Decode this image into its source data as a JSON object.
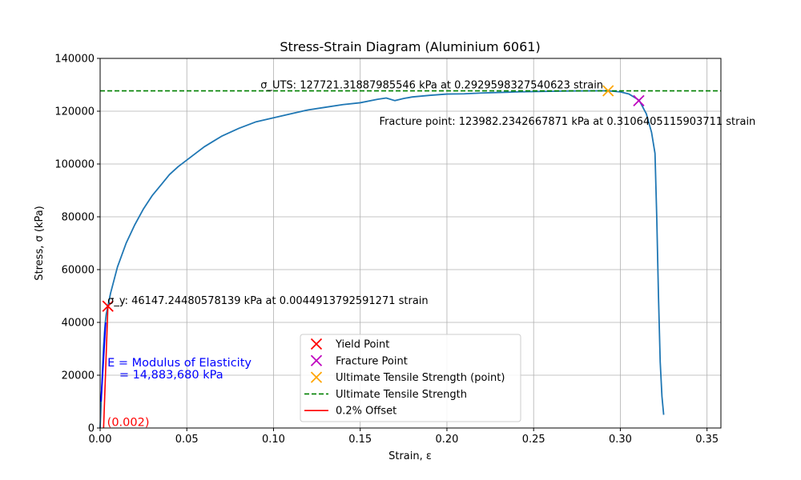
{
  "chart_data": {
    "type": "line",
    "title": "Stress-Strain Diagram (Aluminium 6061)",
    "xlabel": "Strain, ε",
    "ylabel": "Stress, σ (kPa)",
    "xlim": [
      0,
      0.358
    ],
    "ylim": [
      0,
      140000
    ],
    "x_ticks": [
      0,
      0.05,
      0.1,
      0.15,
      0.2,
      0.25,
      0.3,
      0.35
    ],
    "x_tick_labels": [
      "0.00",
      "0.05",
      "0.10",
      "0.15",
      "0.20",
      "0.25",
      "0.30",
      "0.35"
    ],
    "y_ticks": [
      0,
      20000,
      40000,
      60000,
      80000,
      100000,
      120000,
      140000
    ],
    "y_tick_labels": [
      "0",
      "20000",
      "40000",
      "60000",
      "80000",
      "100000",
      "120000",
      "140000"
    ],
    "grid": true,
    "legend_position": "bottom-center",
    "curve": {
      "color": "#1f77b4",
      "x": [
        0,
        0.0005,
        0.001,
        0.0015,
        0.002,
        0.0025,
        0.003,
        0.0035,
        0.0045,
        0.006,
        0.008,
        0.01,
        0.015,
        0.02,
        0.025,
        0.03,
        0.035,
        0.04,
        0.045,
        0.05,
        0.055,
        0.06,
        0.065,
        0.07,
        0.08,
        0.09,
        0.1,
        0.11,
        0.12,
        0.13,
        0.14,
        0.15,
        0.16,
        0.165,
        0.17,
        0.175,
        0.18,
        0.19,
        0.2,
        0.21,
        0.22,
        0.23,
        0.24,
        0.25,
        0.26,
        0.27,
        0.28,
        0.29,
        0.293,
        0.3,
        0.305,
        0.31,
        0.311,
        0.315,
        0.318,
        0.32,
        0.321,
        0.322,
        0.323,
        0.324,
        0.325
      ],
      "y": [
        0,
        8000,
        16000,
        24000,
        31000,
        36000,
        40000,
        43000,
        46147,
        51000,
        56000,
        61000,
        70000,
        77000,
        83000,
        88000,
        92000,
        96000,
        99000,
        101500,
        104000,
        106500,
        108500,
        110500,
        113500,
        116000,
        117500,
        119000,
        120500,
        121500,
        122500,
        123200,
        124500,
        125000,
        124000,
        124800,
        125400,
        126000,
        126500,
        126600,
        126900,
        127100,
        127300,
        127450,
        127550,
        127650,
        127700,
        127721,
        127721,
        127300,
        126500,
        124500,
        123982,
        119000,
        112000,
        104000,
        80000,
        50000,
        25000,
        12000,
        5000
      ]
    },
    "elastic_line": {
      "color": "#0000ff",
      "x": [
        0.0005,
        0.0032
      ],
      "y": [
        10000,
        40000
      ]
    },
    "series": [
      {
        "name": "Yield Point",
        "marker": "x",
        "color": "#ff0000",
        "x": [
          0.0044913792591271
        ],
        "y": [
          46147.24480578139
        ]
      },
      {
        "name": "Fracture Point",
        "marker": "x",
        "color": "#bf00bf",
        "x": [
          0.3106405115903711
        ],
        "y": [
          123982.2342667871
        ]
      },
      {
        "name": "Ultimate Tensile Strength (point)",
        "marker": "x",
        "color": "#ffa500",
        "x": [
          0.2929598327540623
        ],
        "y": [
          127721.31887985546
        ]
      },
      {
        "name": "Ultimate Tensile Strength",
        "line": "dashed",
        "color": "#008000",
        "x": [
          0,
          0.358
        ],
        "y": [
          127721.31887985546,
          127721.31887985546
        ]
      },
      {
        "name": "0.2% Offset",
        "line": "solid",
        "color": "#ff0000",
        "x": [
          0.002,
          0.0044913792591271
        ],
        "y": [
          0,
          46147.24480578139
        ]
      }
    ],
    "annotations": [
      {
        "id": "uts",
        "text": "σ_UTS:  127721.31887985546 kPa at 0.2929598327540623 strain",
        "x": 0.0925,
        "y": 128600,
        "color": "#000000"
      },
      {
        "id": "fracture",
        "text": "Fracture point:  123982.2342667871 kPa at 0.3106405115903711 strain",
        "x": 0.161,
        "y": 114900,
        "color": "#000000"
      },
      {
        "id": "yield",
        "text": "σ_y: 46147.24480578139 kPa at 0.0044913792591271 strain",
        "x": 0.0042,
        "y": 46900,
        "color": "#000000"
      },
      {
        "id": "modulus-line-1",
        "text": "E = Modulus of Elasticity",
        "x": 0.0042,
        "y": 23300,
        "color": "#0000ff"
      },
      {
        "id": "modulus-line-2",
        "text": "= 14,883,680 kPa",
        "x": 0.011,
        "y": 18800,
        "color": "#0000ff"
      },
      {
        "id": "offset-label",
        "text": "(0.002)",
        "x": 0.004,
        "y": 700,
        "color": "#ff0000"
      }
    ]
  }
}
